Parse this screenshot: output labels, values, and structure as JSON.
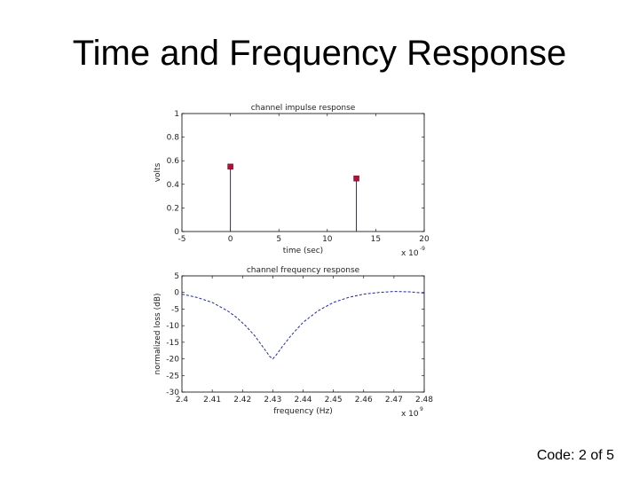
{
  "slide": {
    "title": "Time and Frequency Response",
    "footer": "Code: 2 of 5"
  },
  "colors": {
    "stem": "#1f2a8f",
    "marker": "#b0103a",
    "curve": "#1f2a8f",
    "axis": "#000000"
  },
  "chart_data": [
    {
      "type": "scatter",
      "title": "channel impulse response",
      "xlabel": "time (sec)",
      "ylabel": "volts",
      "x_multiplier_label": "x 10",
      "x_multiplier_exp": "-9",
      "xlim": [
        -5,
        20
      ],
      "ylim": [
        0,
        1
      ],
      "xticks": [
        -5,
        0,
        5,
        10,
        15,
        20
      ],
      "xtick_labels": [
        "-5",
        "0",
        "5",
        "10",
        "15",
        "20"
      ],
      "yticks": [
        0,
        0.2,
        0.4,
        0.6,
        0.8,
        1
      ],
      "ytick_labels": [
        "0",
        "0.2",
        "0.4",
        "0.6",
        "0.8",
        "1"
      ],
      "grid": false,
      "series": [
        {
          "x": [
            0,
            13
          ],
          "y": [
            0.55,
            0.45
          ]
        }
      ]
    },
    {
      "type": "line",
      "title": "channel frequency response",
      "xlabel": "frequency (Hz)",
      "ylabel": "normalized loss (dB)",
      "x_multiplier_label": "x 10",
      "x_multiplier_exp": "9",
      "xlim": [
        2.4,
        2.48
      ],
      "ylim": [
        -30,
        5
      ],
      "xticks": [
        2.4,
        2.41,
        2.42,
        2.43,
        2.44,
        2.45,
        2.46,
        2.47,
        2.48
      ],
      "xtick_labels": [
        "2.4",
        "2.41",
        "2.42",
        "2.43",
        "2.44",
        "2.45",
        "2.46",
        "2.47",
        "2.48"
      ],
      "yticks": [
        5,
        0,
        -5,
        -10,
        -15,
        -20,
        -25,
        -30
      ],
      "ytick_labels": [
        "5",
        "0",
        "-5",
        "-10",
        "-15",
        "-20",
        "-25",
        "-30"
      ],
      "grid": false,
      "series": [
        {
          "x": [
            2.4,
            2.405,
            2.41,
            2.415,
            2.418,
            2.421,
            2.424,
            2.426,
            2.428,
            2.429,
            2.43,
            2.431,
            2.433,
            2.436,
            2.44,
            2.445,
            2.45,
            2.455,
            2.46,
            2.465,
            2.47,
            2.475,
            2.48
          ],
          "y": [
            -0.5,
            -1.5,
            -3.0,
            -5.5,
            -7.5,
            -10.0,
            -13.0,
            -15.5,
            -18.0,
            -19.3,
            -20.0,
            -19.0,
            -16.5,
            -13.0,
            -9.0,
            -5.5,
            -3.0,
            -1.5,
            -0.5,
            0.0,
            0.3,
            0.2,
            -0.2
          ]
        }
      ]
    }
  ]
}
